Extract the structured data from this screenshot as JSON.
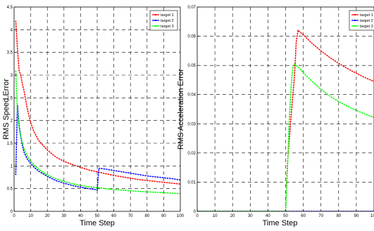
{
  "chart_data": [
    {
      "type": "line",
      "xlabel": "Time Step",
      "ylabel": "RMS Speed Error",
      "xlim": [
        0,
        100
      ],
      "ylim": [
        0,
        4.5
      ],
      "xticks": [
        0,
        10,
        20,
        30,
        40,
        50,
        60,
        70,
        80,
        90,
        100
      ],
      "yticks": [
        0,
        0.5,
        1,
        1.5,
        2,
        2.5,
        3,
        3.5,
        4,
        4.5
      ],
      "xtick_labels": [
        "0",
        "10",
        "20",
        "30",
        "40",
        "50",
        "60",
        "70",
        "80",
        "90",
        "100"
      ],
      "ytick_labels": [
        "0",
        "0.5",
        "1",
        "1.5",
        "2",
        "2.5",
        "3",
        "3.5",
        "4",
        "4.5"
      ],
      "grid": true,
      "legend_position": "top-right",
      "series": [
        {
          "name": "target 1",
          "color": "#ff0000",
          "x": [
            1,
            2,
            3,
            4,
            5,
            6,
            7,
            8,
            10,
            12,
            15,
            20,
            25,
            30,
            35,
            40,
            45,
            50,
            55,
            60,
            65,
            70,
            75,
            80,
            85,
            90,
            95,
            100
          ],
          "y": [
            4.2,
            3.6,
            3.1,
            3.0,
            2.8,
            2.65,
            2.45,
            2.25,
            1.95,
            1.75,
            1.55,
            1.35,
            1.2,
            1.1,
            1.03,
            0.97,
            0.91,
            0.87,
            0.83,
            0.79,
            0.76,
            0.73,
            0.7,
            0.68,
            0.66,
            0.64,
            0.62,
            0.6
          ]
        },
        {
          "name": "target 2",
          "color": "#0000ff",
          "x": [
            1,
            2,
            3,
            4,
            5,
            6,
            8,
            10,
            12,
            15,
            20,
            25,
            30,
            35,
            40,
            45,
            49,
            50,
            51,
            55,
            60,
            65,
            70,
            75,
            80,
            85,
            90,
            95,
            100
          ],
          "y": [
            0.8,
            2.35,
            1.9,
            1.65,
            1.45,
            1.3,
            1.15,
            1.05,
            0.97,
            0.88,
            0.77,
            0.68,
            0.62,
            0.57,
            0.53,
            0.5,
            0.48,
            0.47,
            0.95,
            0.93,
            0.9,
            0.87,
            0.84,
            0.81,
            0.78,
            0.76,
            0.74,
            0.72,
            0.69
          ]
        },
        {
          "name": "target 3",
          "color": "#00ff00",
          "x": [
            1,
            2,
            3,
            4,
            5,
            6,
            8,
            10,
            12,
            15,
            20,
            25,
            30,
            35,
            40,
            45,
            50,
            55,
            60,
            65,
            70,
            75,
            80,
            85,
            90,
            95,
            100
          ],
          "y": [
            3.1,
            2.2,
            1.85,
            1.65,
            1.5,
            1.38,
            1.22,
            1.1,
            1.02,
            0.92,
            0.8,
            0.72,
            0.66,
            0.61,
            0.57,
            0.54,
            0.52,
            0.5,
            0.48,
            0.47,
            0.45,
            0.44,
            0.43,
            0.42,
            0.41,
            0.4,
            0.39
          ]
        }
      ]
    },
    {
      "type": "line",
      "xlabel": "Time Step",
      "ylabel": "RMS Acceleration Error",
      "xlim": [
        0,
        100
      ],
      "ylim": [
        0,
        0.07
      ],
      "xticks": [
        0,
        10,
        20,
        30,
        40,
        50,
        60,
        70,
        80,
        90,
        100
      ],
      "yticks": [
        0,
        0.01,
        0.02,
        0.03,
        0.04,
        0.05,
        0.06,
        0.07
      ],
      "xtick_labels": [
        "0",
        "10",
        "20",
        "30",
        "40",
        "50",
        "60",
        "70",
        "80",
        "90",
        "100"
      ],
      "ytick_labels": [
        "0",
        "0.01",
        "0.02",
        "0.03",
        "0.04",
        "0.05",
        "0.06",
        "0.07"
      ],
      "grid": true,
      "legend_position": "top-right",
      "series": [
        {
          "name": "target 1",
          "color": "#ff0000",
          "x": [
            0,
            50,
            51,
            53,
            55,
            56,
            57,
            60,
            65,
            70,
            75,
            80,
            85,
            90,
            95,
            100
          ],
          "y": [
            0,
            0,
            0.016,
            0.032,
            0.046,
            0.058,
            0.062,
            0.0605,
            0.0575,
            0.055,
            0.0527,
            0.0507,
            0.0489,
            0.0473,
            0.0458,
            0.0445
          ]
        },
        {
          "name": "target 2",
          "color": "#0000ff",
          "x": [
            0,
            100
          ],
          "y": [
            0,
            0
          ]
        },
        {
          "name": "target 3",
          "color": "#00ff00",
          "x": [
            0,
            50,
            51,
            52,
            53,
            54,
            55,
            58,
            60,
            65,
            70,
            75,
            80,
            85,
            90,
            95,
            100
          ],
          "y": [
            0,
            0,
            0.014,
            0.03,
            0.042,
            0.049,
            0.0505,
            0.049,
            0.0475,
            0.0445,
            0.0418,
            0.0395,
            0.0376,
            0.036,
            0.0346,
            0.0333,
            0.0322
          ]
        }
      ]
    }
  ]
}
